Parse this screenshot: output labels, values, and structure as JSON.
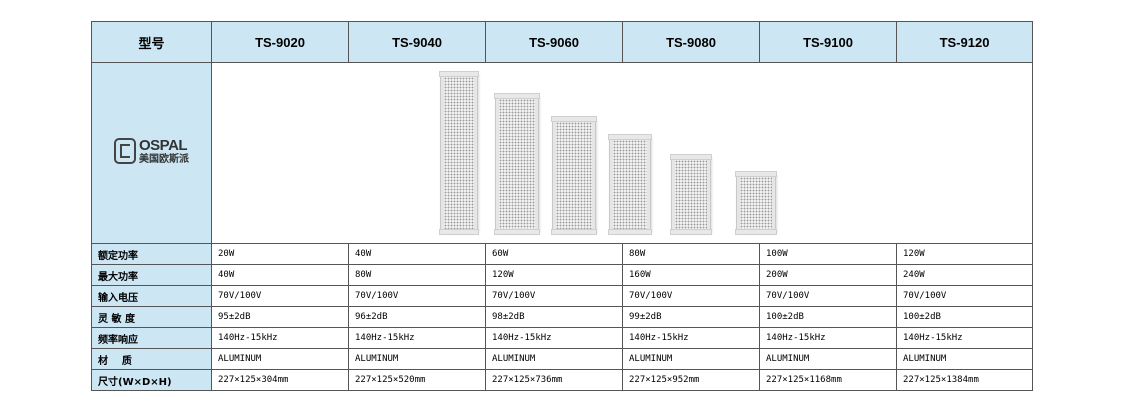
{
  "header": {
    "label": "型号",
    "models": [
      "TS-9020",
      "TS-9040",
      "TS-9060",
      "TS-9080",
      "TS-9100",
      "TS-9120"
    ]
  },
  "logo": {
    "brand": "OSPAL",
    "subtitle": "美国欧斯派"
  },
  "rows": [
    {
      "label": "额定功率",
      "values": [
        "20W",
        "40W",
        "60W",
        "80W",
        "100W",
        "120W"
      ]
    },
    {
      "label": "最大功率",
      "values": [
        "40W",
        "80W",
        "120W",
        "160W",
        "200W",
        "240W"
      ]
    },
    {
      "label": "输入电压",
      "values": [
        "70V/100V",
        "70V/100V",
        "70V/100V",
        "70V/100V",
        "70V/100V",
        "70V/100V"
      ]
    },
    {
      "label": "灵 敏 度",
      "values": [
        "95±2dB",
        "96±2dB",
        "98±2dB",
        "99±2dB",
        "100±2dB",
        "100±2dB"
      ]
    },
    {
      "label": "频率响应",
      "values": [
        "140Hz-15kHz",
        "140Hz-15kHz",
        "140Hz-15kHz",
        "140Hz-15kHz",
        "140Hz-15kHz",
        "140Hz-15kHz"
      ]
    },
    {
      "label": "材    质",
      "values": [
        "ALUMINUM",
        "ALUMINUM",
        "ALUMINUM",
        "ALUMINUM",
        "ALUMINUM",
        "ALUMINUM"
      ]
    },
    {
      "label": "尺寸(W×D×H)",
      "values": [
        "227×125×304mm",
        "227×125×520mm",
        "227×125×736mm",
        "227×125×952mm",
        "227×125×1168mm",
        "227×125×1384mm"
      ]
    }
  ],
  "colors": {
    "header_bg": "#cce6f4",
    "border": "#555555"
  }
}
